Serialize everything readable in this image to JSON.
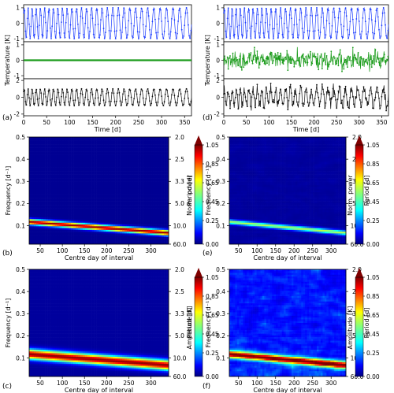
{
  "panel_labels": [
    "(a)",
    "(b)",
    "(c)",
    "(d)",
    "(e)",
    "(f)"
  ],
  "colors": {
    "series1": "#1f3fff",
    "series2": "#1a9b1a",
    "series3": "#111111"
  },
  "chart_data": [
    {
      "id": "a",
      "type": "line",
      "ylabel": "Temperature [K]",
      "xlabel": "Time [d]",
      "xlim": [
        0,
        365
      ],
      "xticks": [
        0,
        50,
        100,
        150,
        200,
        250,
        300,
        350
      ],
      "subplots": [
        {
          "series": "series1",
          "ylim": [
            -1.2,
            1.2
          ],
          "yticks": [
            -1,
            0,
            1
          ],
          "amplitude": 1.0,
          "period_days_start": 8.5,
          "period_days_end": 15,
          "noise": 0.0
        },
        {
          "series": "series2",
          "ylim": [
            -1.2,
            1.2
          ],
          "yticks": [
            -1,
            0,
            1
          ],
          "amplitude": 0.0,
          "period_days_start": 8.5,
          "period_days_end": 15,
          "noise": 0.0
        },
        {
          "series": "series3",
          "ylim": [
            -2.2,
            2.2
          ],
          "yticks": [
            -2,
            0,
            2
          ],
          "amplitude": 1.0,
          "period_days_start": 8.5,
          "period_days_end": 15,
          "noise": 0.0
        }
      ]
    },
    {
      "id": "d",
      "type": "line",
      "ylabel": "Temperature [K]",
      "xlabel": "Time [d]",
      "xlim": [
        0,
        365
      ],
      "xticks": [
        0,
        50,
        100,
        150,
        200,
        250,
        300,
        350
      ],
      "subplots": [
        {
          "series": "series1",
          "ylim": [
            -1.2,
            1.2
          ],
          "yticks": [
            -1,
            0,
            1
          ],
          "amplitude": 1.0,
          "period_days_start": 8.5,
          "period_days_end": 15,
          "noise": 0.0
        },
        {
          "series": "series2",
          "ylim": [
            -1.2,
            1.2
          ],
          "yticks": [
            -1,
            0,
            1
          ],
          "amplitude": 0.0,
          "period_days_start": 8.5,
          "period_days_end": 15,
          "noise": 0.45
        },
        {
          "series": "series3",
          "ylim": [
            -2.2,
            2.2
          ],
          "yticks": [
            -2,
            0,
            2
          ],
          "amplitude": 1.0,
          "period_days_start": 8.5,
          "period_days_end": 15,
          "noise": 0.45
        }
      ]
    },
    {
      "id": "b",
      "type": "heatmap",
      "xlabel": "Centre day of interval",
      "ylabel": "Frequency [d⁻¹]",
      "right_label": "Period [d]",
      "colorbar_label": "Norm. power",
      "xlim": [
        25,
        340
      ],
      "ylim": [
        0.0167,
        0.5
      ],
      "xticks": [
        50,
        100,
        150,
        200,
        250,
        300
      ],
      "yticks": [
        0.1,
        0.2,
        0.3,
        0.4,
        0.5
      ],
      "period_ticks": [
        "2.0",
        "2.5",
        "3.3",
        "5.0",
        "10.0",
        "60.0"
      ],
      "colorbar_ticks": [
        "0.00",
        "0.25",
        "0.45",
        "0.65",
        "0.85",
        "1.05"
      ],
      "ridge_freq_start": 0.117,
      "ridge_freq_end": 0.067,
      "ridge_width": 0.012,
      "ridge_peak": 1.0,
      "noise_level": 0.0,
      "background": 0.02
    },
    {
      "id": "e",
      "type": "heatmap",
      "xlabel": "Centre day of interval",
      "ylabel": "Frequency [d⁻¹]",
      "right_label": "Period [d]",
      "colorbar_label": "Norm. power",
      "xlim": [
        25,
        340
      ],
      "ylim": [
        0.0167,
        0.5
      ],
      "xticks": [
        50,
        100,
        150,
        200,
        250,
        300
      ],
      "yticks": [
        0.1,
        0.2,
        0.3,
        0.4,
        0.5
      ],
      "period_ticks": [
        "2.0",
        "2.5",
        "3.3",
        "5.0",
        "10.0",
        "60.0"
      ],
      "colorbar_ticks": [
        "0.00",
        "0.25",
        "0.45",
        "0.65",
        "0.85",
        "1.05"
      ],
      "ridge_freq_start": 0.117,
      "ridge_freq_end": 0.067,
      "ridge_width": 0.01,
      "ridge_peak": 0.55,
      "noise_level": 0.05,
      "background": 0.02
    },
    {
      "id": "c",
      "type": "heatmap",
      "xlabel": "Centre day of interval",
      "ylabel": "Frequency [d⁻¹]",
      "right_label": "Period [d]",
      "colorbar_label": "Amplitude [K]",
      "xlim": [
        25,
        340
      ],
      "ylim": [
        0.0167,
        0.5
      ],
      "xticks": [
        50,
        100,
        150,
        200,
        250,
        300
      ],
      "yticks": [
        0.1,
        0.2,
        0.3,
        0.4,
        0.5
      ],
      "period_ticks": [
        "2.0",
        "2.5",
        "3.3",
        "5.0",
        "10.0",
        "60.0"
      ],
      "colorbar_ticks": [
        "0.00",
        "0.25",
        "0.45",
        "0.65",
        "0.85",
        "1.05"
      ],
      "ridge_freq_start": 0.117,
      "ridge_freq_end": 0.067,
      "ridge_width": 0.022,
      "ridge_peak": 1.0,
      "noise_level": 0.0,
      "background": 0.03
    },
    {
      "id": "f",
      "type": "heatmap",
      "xlabel": "Centre day of interval",
      "ylabel": "Frequency [d⁻¹]",
      "right_label": "Period [d]",
      "colorbar_label": "Amplitude [K]",
      "xlim": [
        25,
        340
      ],
      "ylim": [
        0.0167,
        0.5
      ],
      "xticks": [
        50,
        100,
        150,
        200,
        250,
        300
      ],
      "yticks": [
        0.1,
        0.2,
        0.3,
        0.4,
        0.5
      ],
      "period_ticks": [
        "2.0",
        "2.5",
        "3.3",
        "5.0",
        "10.0",
        "60.0"
      ],
      "colorbar_ticks": [
        "0.00",
        "0.25",
        "0.45",
        "0.65",
        "0.85",
        "1.05"
      ],
      "ridge_freq_start": 0.117,
      "ridge_freq_end": 0.067,
      "ridge_width": 0.016,
      "ridge_peak": 0.95,
      "noise_level": 0.32,
      "background": 0.08
    }
  ]
}
